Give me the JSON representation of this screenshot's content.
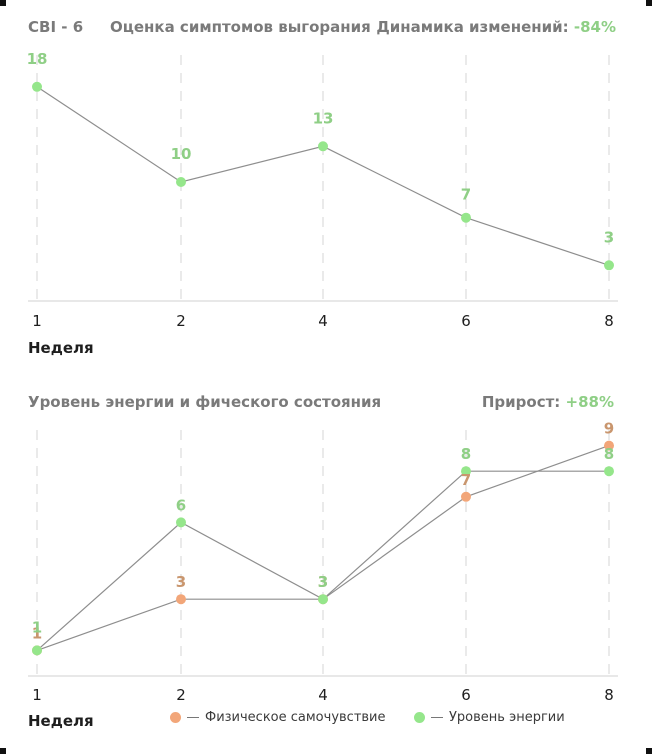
{
  "chart1": {
    "label": "CBI - 6",
    "title": "Оценка симптомов выгорания",
    "change_label": "Динамика изменений:",
    "change_value": "-84%"
  },
  "chart2": {
    "title": "Уровень энергии и фического состояния",
    "change_label": "Прирост:",
    "change_value": "+88%"
  },
  "axis_title": "Неделя",
  "colors": {
    "energy": "#95e68b",
    "energy_label": "#8fcf86",
    "physical": "#f2a679",
    "physical_label": "#c9966e",
    "line": "#8e8e8e"
  },
  "chart_data": [
    {
      "type": "line",
      "title": "Оценка симптомов выгорания",
      "xlabel": "Неделя",
      "x": [
        "1",
        "2",
        "4",
        "6",
        "8"
      ],
      "series": [
        {
          "values": [
            18,
            10,
            13,
            7,
            3
          ]
        }
      ],
      "ylim": [
        0,
        20
      ],
      "grid": "vertical dashed"
    },
    {
      "type": "line",
      "title": "Уровень энергии и фического состояния",
      "xlabel": "Неделя",
      "x": [
        "1",
        "2",
        "4",
        "6",
        "8"
      ],
      "series": [
        {
          "name": "Физическое самочувствие",
          "values": [
            1,
            3,
            3,
            7,
            9
          ]
        },
        {
          "name": "Уровень энергии",
          "values": [
            1,
            6,
            3,
            8,
            8
          ]
        }
      ],
      "ylim": [
        0,
        10
      ],
      "legend": "bottom"
    }
  ]
}
